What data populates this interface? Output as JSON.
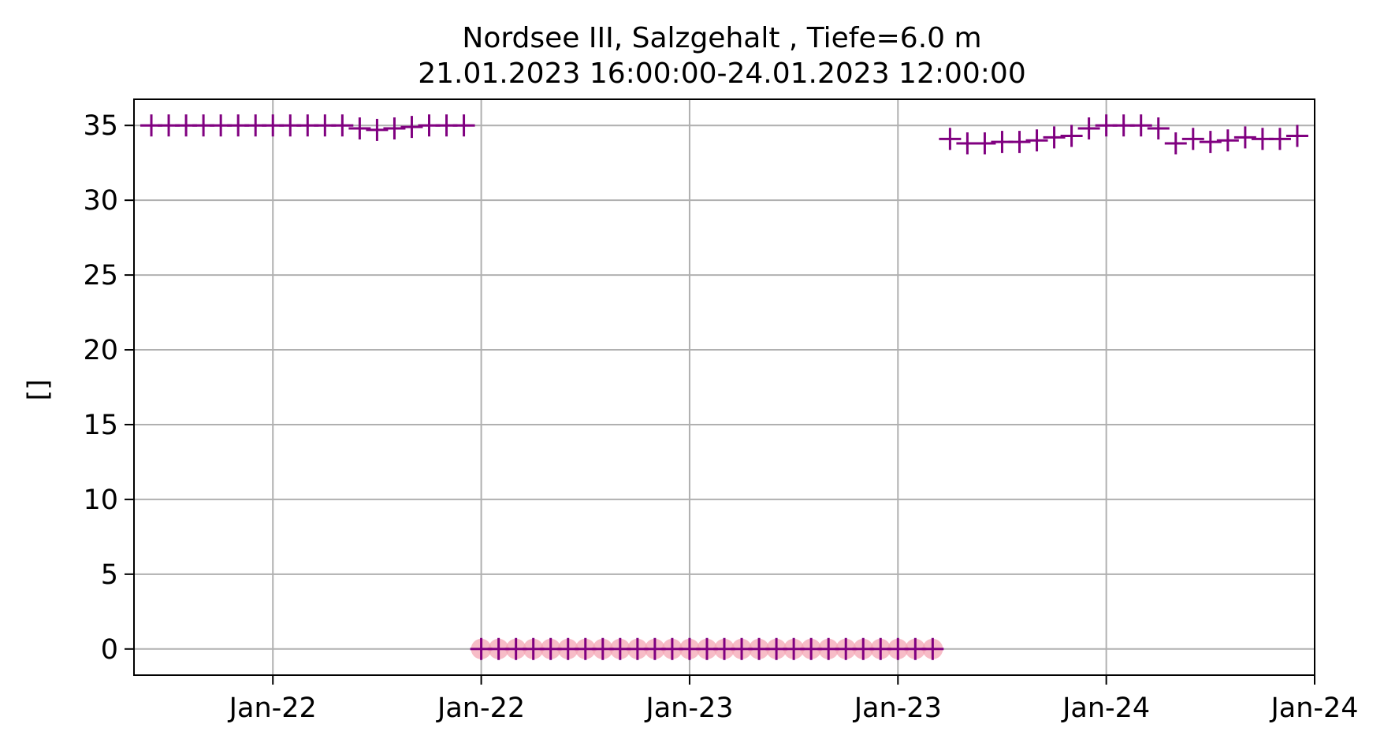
{
  "chart_data": {
    "type": "scatter",
    "title": "Nordsee III, Salzgehalt , Tiefe=6.0 m",
    "subtitle": "21.01.2023 16:00:00-24.01.2023 12:00:00",
    "xlabel": "",
    "ylabel": "[]",
    "x_start": "2023-01-21 16:00",
    "x_end": "2023-01-24 12:00",
    "xlim": [
      "2023-01-21 16:00",
      "2023-01-24 12:00"
    ],
    "ylim": [
      -1.75,
      36.75
    ],
    "grid": true,
    "y_ticks": [
      0,
      5,
      10,
      15,
      20,
      25,
      30,
      35
    ],
    "x_ticks": [
      {
        "x": "2023-01-22 00:00",
        "label": "Jan-22"
      },
      {
        "x": "2023-01-22 12:00",
        "label": "Jan-22"
      },
      {
        "x": "2023-01-23 00:00",
        "label": "Jan-23"
      },
      {
        "x": "2023-01-23 12:00",
        "label": "Jan-23"
      },
      {
        "x": "2023-01-24 00:00",
        "label": "Jan-24"
      },
      {
        "x": "2023-01-24 12:00",
        "label": "Jan-24"
      }
    ],
    "colors": {
      "series": "#800080",
      "flagged": "#f4a6b4"
    },
    "series": [
      {
        "marker": "plus",
        "points": [
          [
            "2023-01-21 17:00",
            35.0
          ],
          [
            "2023-01-21 18:00",
            35.0
          ],
          [
            "2023-01-21 19:00",
            35.0
          ],
          [
            "2023-01-21 20:00",
            35.0
          ],
          [
            "2023-01-21 21:00",
            35.0
          ],
          [
            "2023-01-21 22:00",
            35.0
          ],
          [
            "2023-01-21 23:00",
            35.0
          ],
          [
            "2023-01-22 00:00",
            35.0
          ],
          [
            "2023-01-22 01:00",
            35.0
          ],
          [
            "2023-01-22 02:00",
            35.0
          ],
          [
            "2023-01-22 03:00",
            35.0
          ],
          [
            "2023-01-22 04:00",
            35.0
          ],
          [
            "2023-01-22 05:00",
            34.8
          ],
          [
            "2023-01-22 06:00",
            34.7
          ],
          [
            "2023-01-22 07:00",
            34.8
          ],
          [
            "2023-01-22 08:00",
            34.9
          ],
          [
            "2023-01-22 09:00",
            35.0
          ],
          [
            "2023-01-22 10:00",
            35.0
          ],
          [
            "2023-01-22 11:00",
            35.0
          ],
          [
            "2023-01-22 12:00",
            0
          ],
          [
            "2023-01-22 13:00",
            0
          ],
          [
            "2023-01-22 14:00",
            0
          ],
          [
            "2023-01-22 15:00",
            0
          ],
          [
            "2023-01-22 16:00",
            0
          ],
          [
            "2023-01-22 17:00",
            0
          ],
          [
            "2023-01-22 18:00",
            0
          ],
          [
            "2023-01-22 19:00",
            0
          ],
          [
            "2023-01-22 20:00",
            0
          ],
          [
            "2023-01-22 21:00",
            0
          ],
          [
            "2023-01-22 22:00",
            0
          ],
          [
            "2023-01-22 23:00",
            0
          ],
          [
            "2023-01-23 00:00",
            0
          ],
          [
            "2023-01-23 01:00",
            0
          ],
          [
            "2023-01-23 02:00",
            0
          ],
          [
            "2023-01-23 03:00",
            0
          ],
          [
            "2023-01-23 04:00",
            0
          ],
          [
            "2023-01-23 05:00",
            0
          ],
          [
            "2023-01-23 06:00",
            0
          ],
          [
            "2023-01-23 07:00",
            0
          ],
          [
            "2023-01-23 08:00",
            0
          ],
          [
            "2023-01-23 09:00",
            0
          ],
          [
            "2023-01-23 10:00",
            0
          ],
          [
            "2023-01-23 11:00",
            0
          ],
          [
            "2023-01-23 12:00",
            0
          ],
          [
            "2023-01-23 13:00",
            0
          ],
          [
            "2023-01-23 14:00",
            0
          ],
          [
            "2023-01-23 15:00",
            34.1
          ],
          [
            "2023-01-23 16:00",
            33.8
          ],
          [
            "2023-01-23 17:00",
            33.8
          ],
          [
            "2023-01-23 18:00",
            33.9
          ],
          [
            "2023-01-23 19:00",
            33.9
          ],
          [
            "2023-01-23 20:00",
            34.0
          ],
          [
            "2023-01-23 21:00",
            34.2
          ],
          [
            "2023-01-23 22:00",
            34.3
          ],
          [
            "2023-01-23 23:00",
            34.8
          ],
          [
            "2023-01-24 00:00",
            35.0
          ],
          [
            "2023-01-24 01:00",
            35.0
          ],
          [
            "2023-01-24 02:00",
            35.0
          ],
          [
            "2023-01-24 03:00",
            34.8
          ],
          [
            "2023-01-24 04:00",
            33.8
          ],
          [
            "2023-01-24 05:00",
            34.1
          ],
          [
            "2023-01-24 06:00",
            33.9
          ],
          [
            "2023-01-24 07:00",
            34.0
          ],
          [
            "2023-01-24 08:00",
            34.2
          ],
          [
            "2023-01-24 09:00",
            34.1
          ],
          [
            "2023-01-24 10:00",
            34.1
          ],
          [
            "2023-01-24 11:00",
            34.3
          ]
        ]
      },
      {
        "marker": "circle",
        "points": [
          [
            "2023-01-22 12:00",
            0
          ],
          [
            "2023-01-22 13:00",
            0
          ],
          [
            "2023-01-22 14:00",
            0
          ],
          [
            "2023-01-22 15:00",
            0
          ],
          [
            "2023-01-22 16:00",
            0
          ],
          [
            "2023-01-22 17:00",
            0
          ],
          [
            "2023-01-22 18:00",
            0
          ],
          [
            "2023-01-22 19:00",
            0
          ],
          [
            "2023-01-22 20:00",
            0
          ],
          [
            "2023-01-22 21:00",
            0
          ],
          [
            "2023-01-22 22:00",
            0
          ],
          [
            "2023-01-22 23:00",
            0
          ],
          [
            "2023-01-23 00:00",
            0
          ],
          [
            "2023-01-23 01:00",
            0
          ],
          [
            "2023-01-23 02:00",
            0
          ],
          [
            "2023-01-23 03:00",
            0
          ],
          [
            "2023-01-23 04:00",
            0
          ],
          [
            "2023-01-23 05:00",
            0
          ],
          [
            "2023-01-23 06:00",
            0
          ],
          [
            "2023-01-23 07:00",
            0
          ],
          [
            "2023-01-23 08:00",
            0
          ],
          [
            "2023-01-23 09:00",
            0
          ],
          [
            "2023-01-23 10:00",
            0
          ],
          [
            "2023-01-23 11:00",
            0
          ],
          [
            "2023-01-23 12:00",
            0
          ],
          [
            "2023-01-23 13:00",
            0
          ],
          [
            "2023-01-23 14:00",
            0
          ]
        ]
      }
    ]
  }
}
